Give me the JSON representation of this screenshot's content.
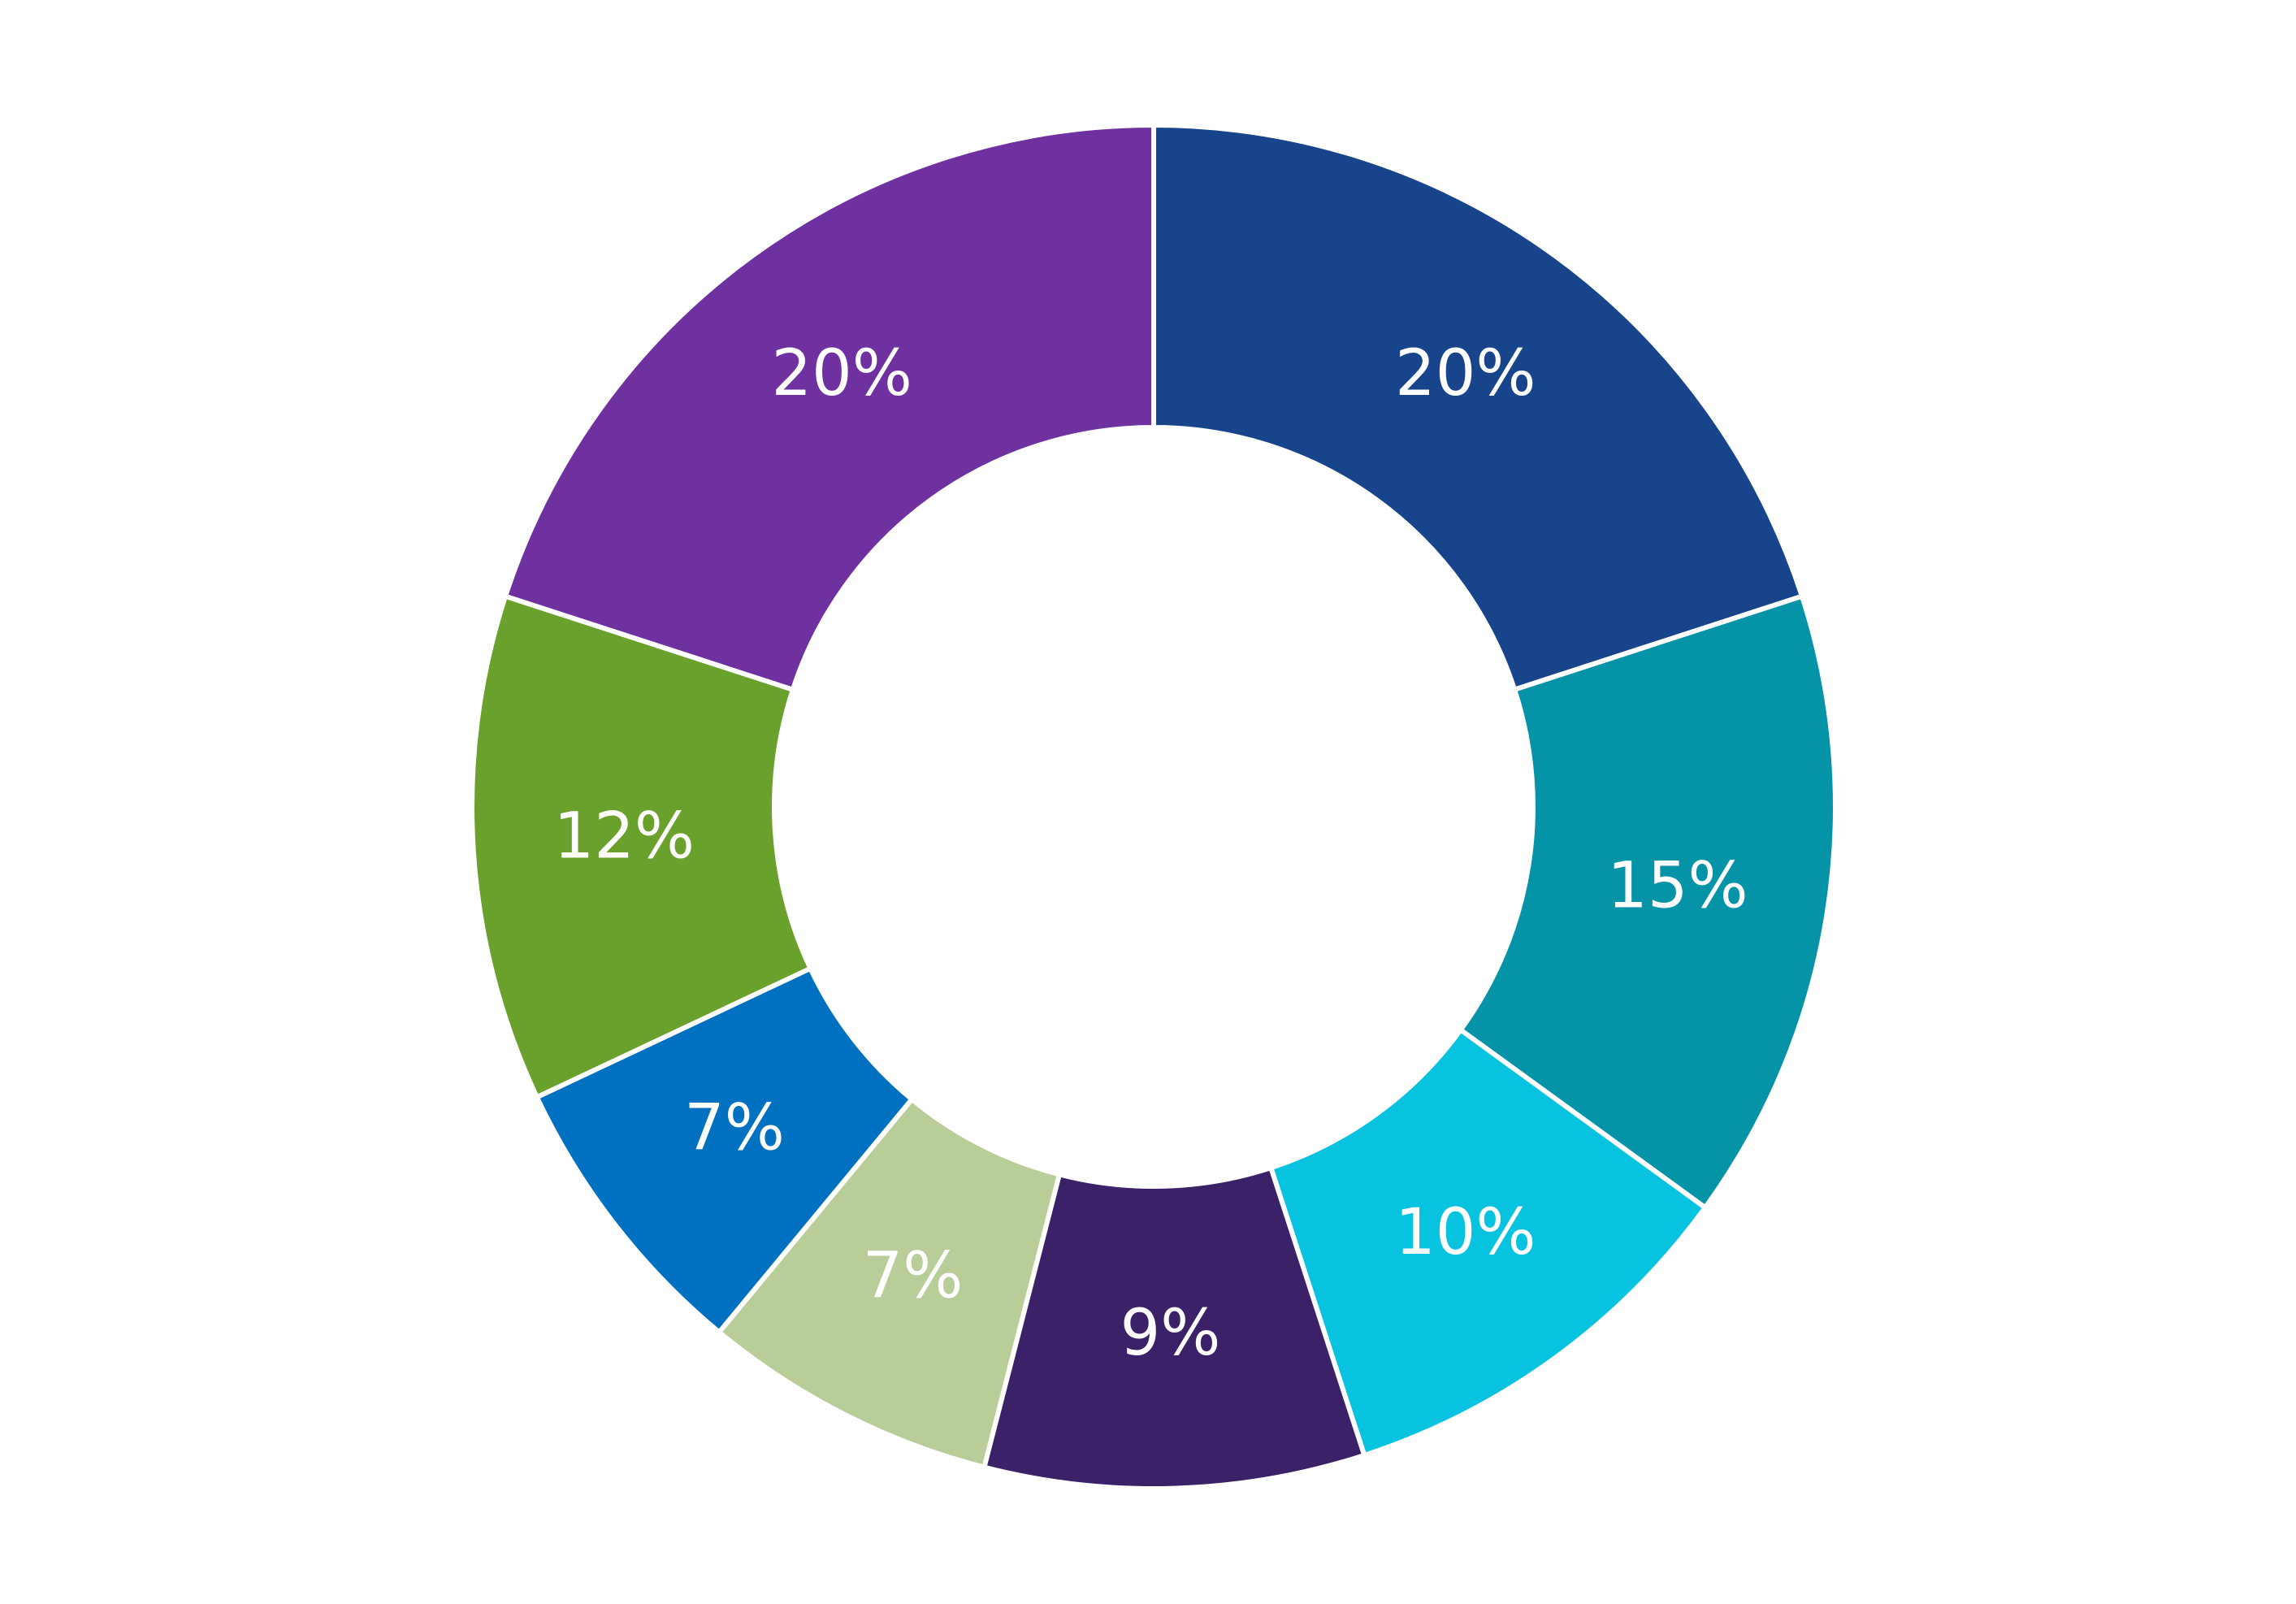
{
  "chart_data": {
    "type": "donut",
    "values": [
      20,
      15,
      10,
      9,
      7,
      7,
      12,
      20
    ],
    "value_labels": [
      "20%",
      "15%",
      "10%",
      "9%",
      "7%",
      "7%",
      "12%",
      "20%"
    ],
    "colors": [
      "#17448a",
      "#0593a7",
      "#08c3df",
      "#3b2168",
      "#b9cd98",
      "#0070c0",
      "#6aa02c",
      "#6f30a0"
    ]
  }
}
